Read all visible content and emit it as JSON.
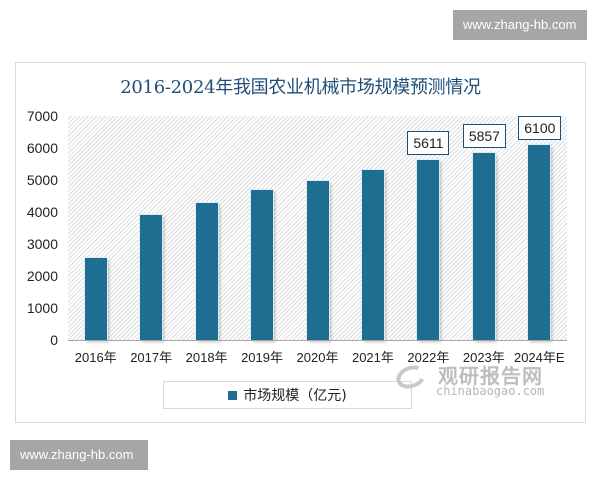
{
  "watermarks": {
    "top": "www.zhang-hb.com",
    "bottom": "www.zhang-hb.com"
  },
  "brand": {
    "cn": "观研报告网",
    "en": "chinabaogao.com"
  },
  "legend": {
    "label": "市场规模（亿元)",
    "color": "#1f6e91"
  },
  "colors": {
    "bar": "#1f6e91",
    "title": "#1f4e79",
    "axis": "#a6a6a6"
  },
  "chart_data": {
    "type": "bar",
    "title": "2016-2024年我国农业机械市场规模预测情况",
    "xlabel": "",
    "ylabel": "",
    "categories": [
      "2016年",
      "2017年",
      "2018年",
      "2019年",
      "2020年",
      "2021年",
      "2022年",
      "2023年",
      "2024年E"
    ],
    "series": [
      {
        "name": "市场规模（亿元)",
        "values": [
          2560,
          3900,
          4280,
          4690,
          4970,
          5310,
          5611,
          5857,
          6100
        ]
      }
    ],
    "data_labels": {
      "2022年": "5611",
      "2023年": "5857",
      "2024年E": "6100"
    },
    "ylim": [
      0,
      7000
    ],
    "yticks": [
      "0",
      "1000",
      "2000",
      "3000",
      "4000",
      "5000",
      "6000",
      "7000"
    ],
    "grid": false,
    "legend_position": "bottom"
  }
}
